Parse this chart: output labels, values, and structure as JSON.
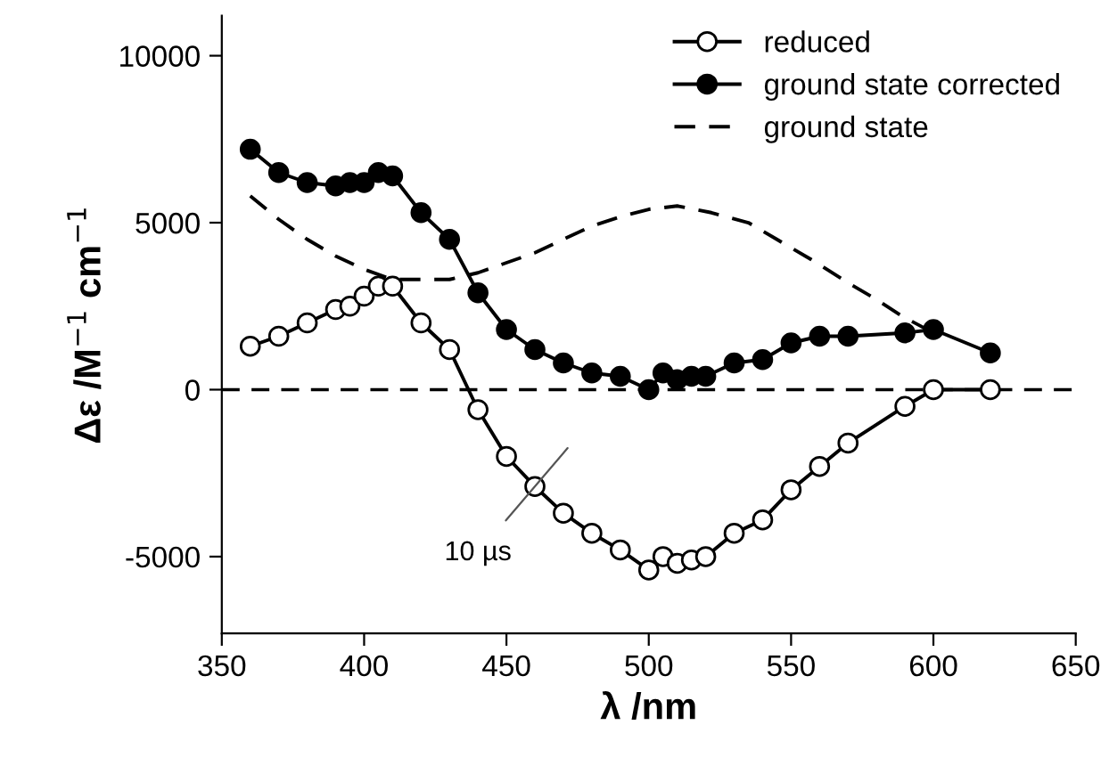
{
  "chart_data": {
    "type": "line",
    "xlabel": "λ /nm",
    "ylabel": "Δε /M$^{−1}$ cm$^{−1}$",
    "xlim": [
      350,
      650
    ],
    "ylim": [
      -7300,
      11200
    ],
    "xticks": [
      350,
      400,
      450,
      500,
      550,
      600,
      650
    ],
    "yticks": [
      -5000,
      0,
      5000,
      10000
    ],
    "grid": false,
    "legend": "top right",
    "ref_lines": [
      {
        "axis": "y",
        "value": 0,
        "line_style": "dashed",
        "color": "#000000"
      }
    ],
    "annotations": [
      "10 µs"
    ],
    "series": [
      {
        "name": "reduced",
        "color": "#000000",
        "marker": "circle",
        "line_style": "solid",
        "x": [
          360,
          370,
          380,
          390,
          395,
          400,
          405,
          410,
          420,
          430,
          440,
          450,
          460,
          470,
          480,
          490,
          500,
          505,
          510,
          515,
          520,
          530,
          540,
          550,
          560,
          570,
          590,
          600,
          620
        ],
        "values": [
          1300,
          1600,
          2000,
          2400,
          2500,
          2800,
          3100,
          3100,
          2000,
          1200,
          -600,
          -2000,
          -2900,
          -3700,
          -4300,
          -4800,
          -5400,
          -5000,
          -5200,
          -5100,
          -5000,
          -4300,
          -3900,
          -3000,
          -2300,
          -1600,
          -500,
          0,
          0
        ]
      },
      {
        "name": "ground state corrected",
        "color": "#000000",
        "marker": "circle",
        "line_style": "solid",
        "x": [
          360,
          370,
          380,
          390,
          395,
          400,
          405,
          410,
          420,
          430,
          440,
          450,
          460,
          470,
          480,
          490,
          500,
          505,
          510,
          515,
          520,
          530,
          540,
          550,
          560,
          570,
          590,
          600,
          620
        ],
        "values": [
          7200,
          6500,
          6200,
          6100,
          6200,
          6200,
          6500,
          6400,
          5300,
          4500,
          2900,
          1800,
          1200,
          800,
          500,
          400,
          0,
          500,
          300,
          400,
          400,
          800,
          900,
          1400,
          1600,
          1600,
          1700,
          1800,
          1100
        ]
      },
      {
        "name": "ground state",
        "color": "#000000",
        "marker": "none",
        "line_style": "dashed",
        "x": [
          360,
          370,
          380,
          390,
          400,
          410,
          420,
          430,
          440,
          450,
          460,
          470,
          480,
          491,
          500,
          510,
          522,
          535,
          545,
          557,
          570,
          580,
          589,
          600
        ],
        "values": [
          5800,
          5100,
          4500,
          4000,
          3600,
          3300,
          3300,
          3300,
          3500,
          3800,
          4100,
          4500,
          4900,
          5200,
          5400,
          5500,
          5300,
          5000,
          4500,
          3900,
          3200,
          2700,
          2200,
          1700
        ]
      }
    ]
  }
}
